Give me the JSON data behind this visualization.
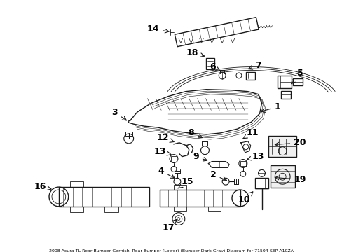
{
  "background_color": "#ffffff",
  "line_color": "#1a1a1a",
  "text_color": "#000000",
  "title": "2008 Acura TL Rear Bumper Garnish, Rear Bumper (Lower) (Bumper Dark Gray) Diagram for 71504-SEP-A10ZA",
  "figsize": [
    4.89,
    3.6
  ],
  "dpi": 100,
  "label_fs": 8,
  "title_fs": 4.5
}
